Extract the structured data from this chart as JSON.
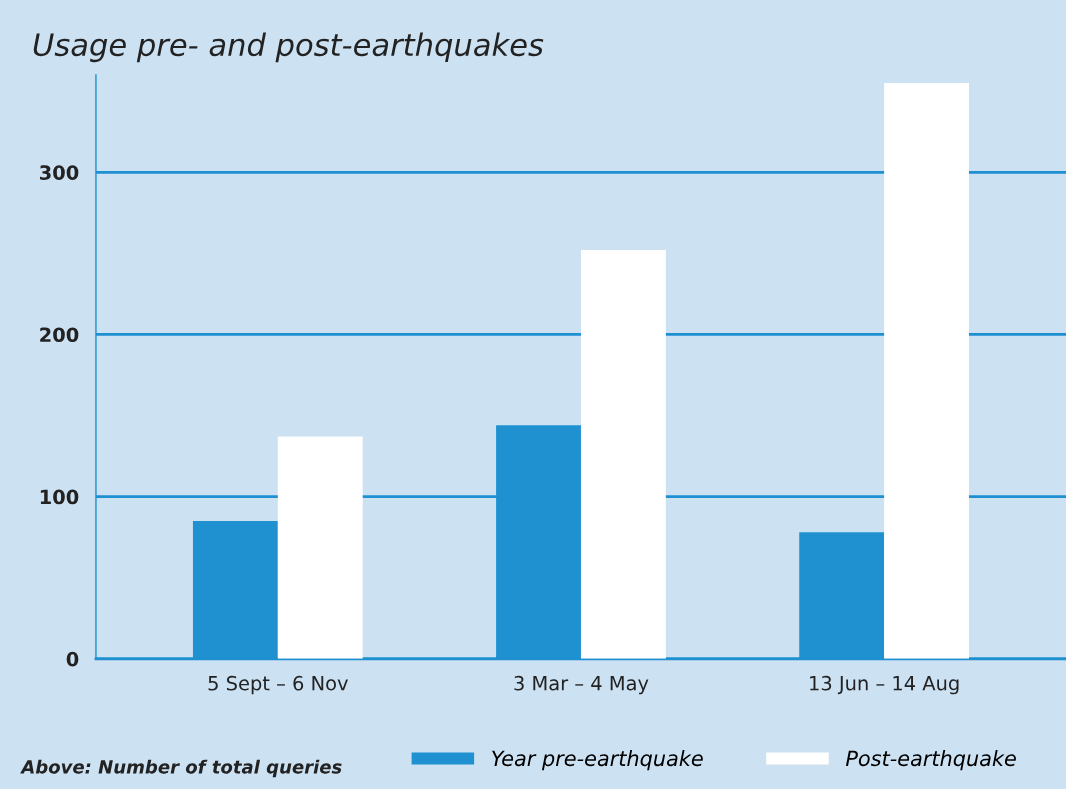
{
  "chart_data": {
    "type": "bar",
    "title": "Usage pre- and post-earthquakes",
    "categories": [
      "5 Sept – 6 Nov",
      "3 Mar – 4 May",
      "13 Jun – 14 Aug"
    ],
    "series": [
      {
        "name": "Year pre-earthquake",
        "color": "#1f91d0",
        "values": [
          85,
          144,
          78
        ]
      },
      {
        "name": "Post-earthquake",
        "color": "#ffffff",
        "values": [
          137,
          252,
          355
        ]
      }
    ],
    "ylim": [
      0,
      360
    ],
    "yticks": [
      0,
      100,
      200,
      300
    ],
    "grid": "y",
    "legend": "bottom",
    "annotations": [
      "Above: Number of total queries"
    ]
  }
}
